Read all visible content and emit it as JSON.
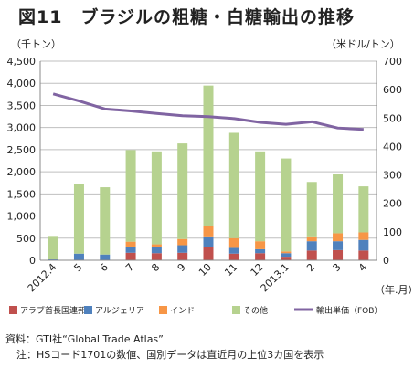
{
  "title": "図11　ブラジルの粗糖・白糖輸出の推移",
  "chart_data": {
    "type": "bar",
    "left_axis_unit": "（千トン）",
    "right_axis_unit": "（米ドル/トン）",
    "x_axis_unit": "（年.月）",
    "categories": [
      "2012.4",
      "5",
      "6",
      "7",
      "8",
      "9",
      "10",
      "11",
      "12",
      "2013.1",
      "2",
      "3",
      "4"
    ],
    "left_ylim": [
      0,
      4500
    ],
    "left_ticks": [
      "0",
      "500",
      "1,000",
      "1,500",
      "2,000",
      "2,500",
      "3,000",
      "3,500",
      "4,000",
      "4,500"
    ],
    "right_ylim": [
      0,
      700
    ],
    "right_ticks": [
      "0",
      "100",
      "200",
      "300",
      "400",
      "500",
      "600",
      "700"
    ],
    "stacked_bars": [
      {
        "name": "アラブ首長国連邦",
        "color": "#c0504d",
        "values": [
          0,
          0,
          0,
          170,
          160,
          170,
          300,
          150,
          160,
          80,
          220,
          230,
          220
        ]
      },
      {
        "name": "アルジェリア",
        "color": "#4f81bd",
        "values": [
          20,
          150,
          130,
          140,
          130,
          170,
          240,
          130,
          90,
          80,
          210,
          200,
          240
        ]
      },
      {
        "name": "インド",
        "color": "#f79646",
        "values": [
          0,
          0,
          0,
          110,
          70,
          140,
          230,
          220,
          180,
          40,
          110,
          180,
          170
        ]
      },
      {
        "name": "その他",
        "color": "#b6d28f",
        "values": [
          530,
          1570,
          1520,
          2070,
          2100,
          2160,
          3180,
          2380,
          2030,
          2100,
          1230,
          1330,
          1040
        ]
      }
    ],
    "line": {
      "name": "輸出単価（FOB）",
      "color": "#8064a2",
      "axis": "right",
      "values": [
        585,
        560,
        532,
        525,
        516,
        508,
        505,
        498,
        485,
        478,
        487,
        465,
        460
      ]
    },
    "grid": "horizontal"
  },
  "footer": {
    "source": "資料：GTI社“Global Trade Atlas”",
    "note": "注：HSコード1701の数値、国別データは直近月の上位3カ国を表示"
  }
}
